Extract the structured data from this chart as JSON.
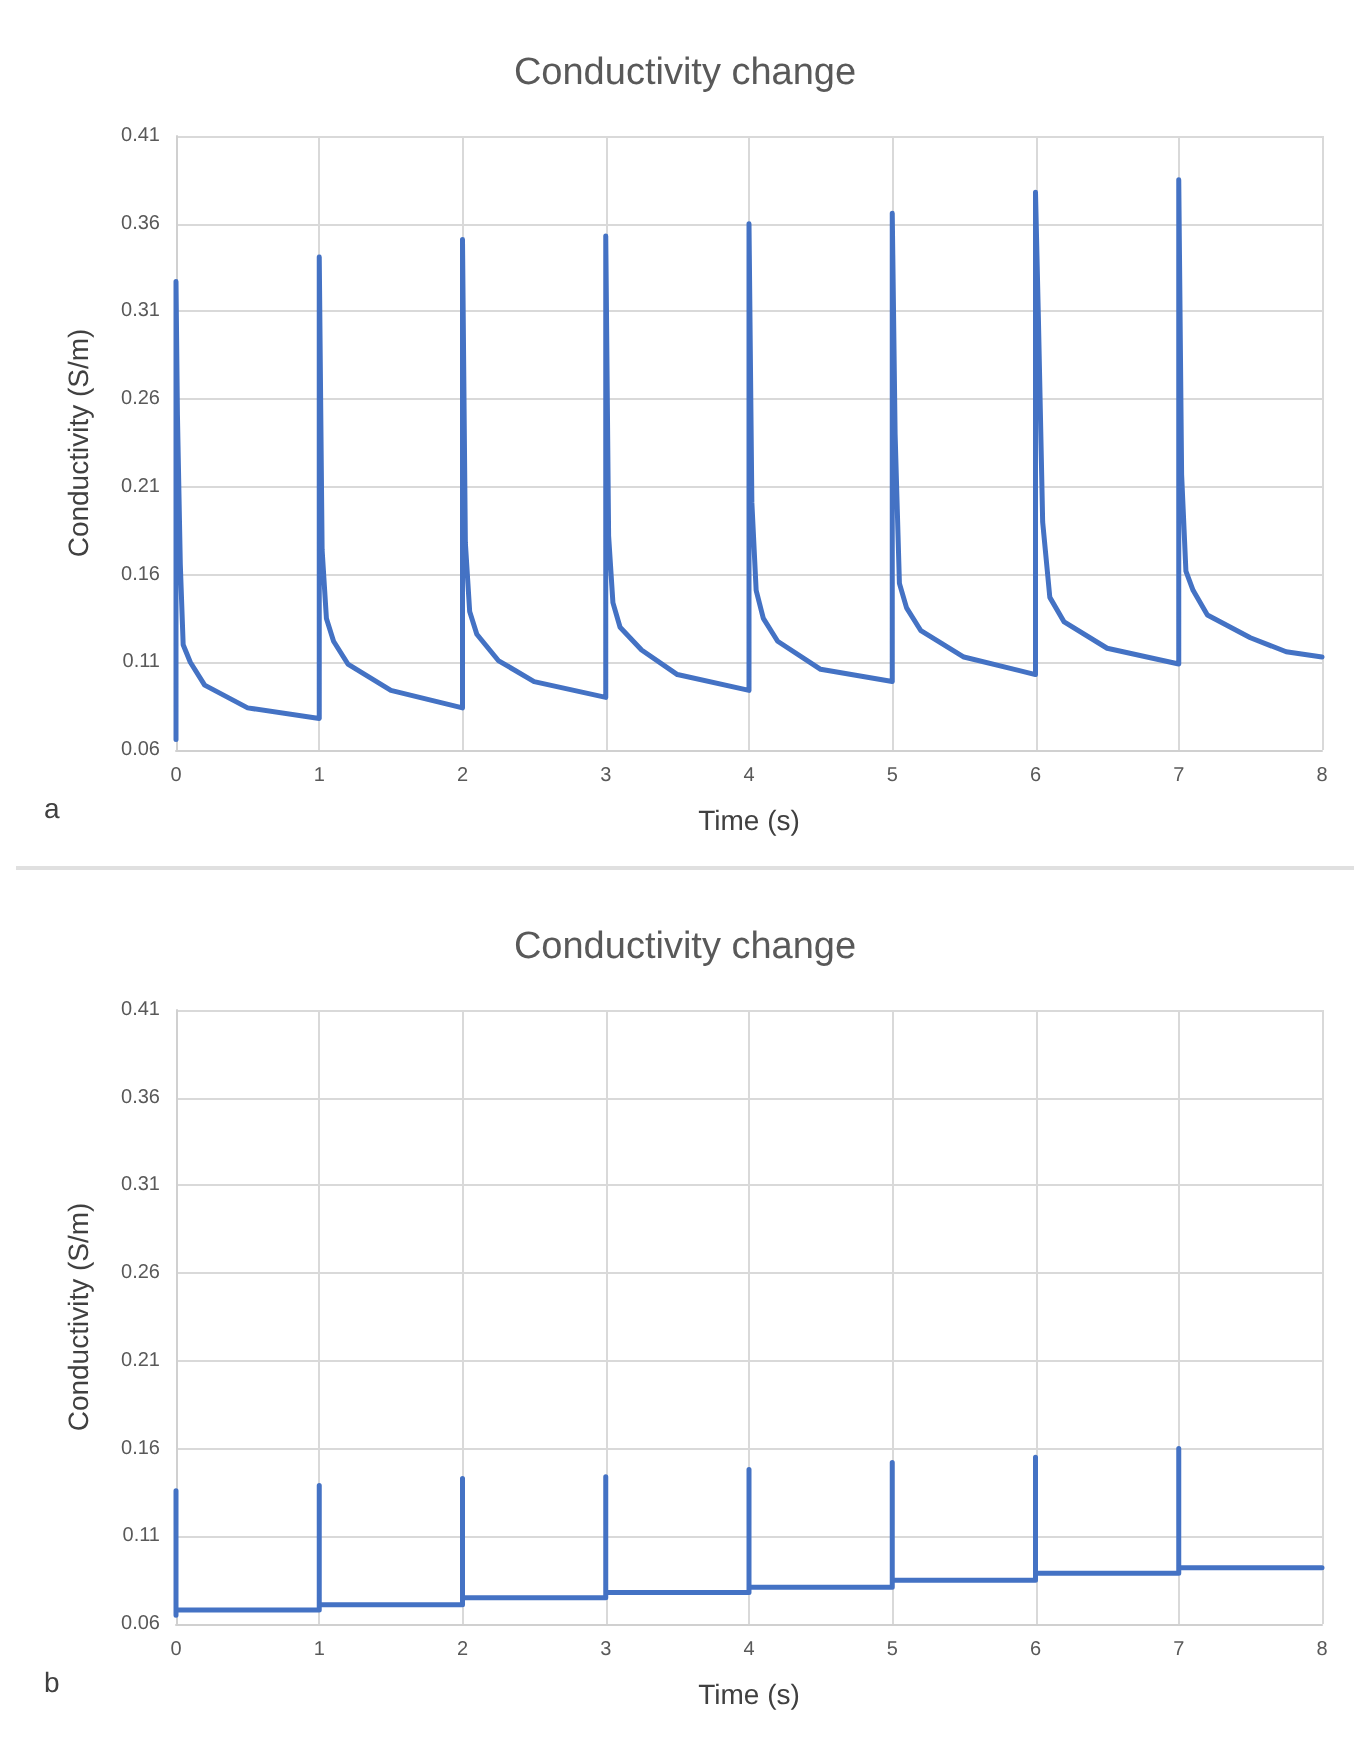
{
  "chart_data": [
    {
      "type": "line",
      "title": "Conductivity change",
      "xlabel": "Time (s)",
      "ylabel": "Conductivity (S/m)",
      "annotations": [
        "a"
      ],
      "color": "#4472c4",
      "x": [
        0,
        0,
        0.01,
        0.03,
        0.05,
        0.1,
        0.2,
        0.5,
        1,
        1,
        1.02,
        1.05,
        1.1,
        1.2,
        1.5,
        2,
        2,
        2.02,
        2.05,
        2.1,
        2.25,
        2.5,
        3,
        3,
        3.02,
        3.05,
        3.1,
        3.25,
        3.5,
        4,
        4,
        4.02,
        4.05,
        4.1,
        4.2,
        4.5,
        5,
        5,
        5.02,
        5.05,
        5.1,
        5.2,
        5.5,
        6,
        6,
        6.02,
        6.05,
        6.1,
        6.2,
        6.5,
        7,
        7,
        7.02,
        7.05,
        7.1,
        7.2,
        7.5,
        7.75,
        8
      ],
      "values": [
        0.066,
        0.327,
        0.251,
        0.166,
        0.12,
        0.11,
        0.097,
        0.084,
        0.078,
        0.341,
        0.174,
        0.135,
        0.122,
        0.109,
        0.094,
        0.084,
        0.351,
        0.178,
        0.139,
        0.126,
        0.111,
        0.099,
        0.09,
        0.353,
        0.182,
        0.144,
        0.13,
        0.117,
        0.103,
        0.094,
        0.36,
        0.201,
        0.151,
        0.135,
        0.122,
        0.106,
        0.099,
        0.366,
        0.24,
        0.155,
        0.141,
        0.128,
        0.113,
        0.103,
        0.378,
        0.307,
        0.19,
        0.147,
        0.133,
        0.118,
        0.109,
        0.385,
        0.217,
        0.162,
        0.151,
        0.137,
        0.124,
        0.116,
        0.113
      ],
      "xlim": [
        0,
        8
      ],
      "xticks": [
        0,
        1,
        2,
        3,
        4,
        5,
        6,
        7,
        8
      ],
      "ylim": [
        0.06,
        0.41
      ],
      "yticks": [
        0.06,
        0.11,
        0.16,
        0.21,
        0.26,
        0.31,
        0.36,
        0.41
      ],
      "grid": true
    },
    {
      "type": "line",
      "title": "Conductivity change",
      "xlabel": "Time (s)",
      "ylabel": "Conductivity (S/m)",
      "annotations": [
        "b"
      ],
      "color": "#4472c4",
      "x": [
        0,
        0,
        0,
        1,
        1,
        1,
        2,
        2,
        2,
        3,
        3,
        3,
        4,
        4,
        4,
        5,
        5,
        5,
        6,
        6,
        6,
        7,
        7,
        7,
        8
      ],
      "values": [
        0.065,
        0.136,
        0.068,
        0.068,
        0.139,
        0.071,
        0.071,
        0.143,
        0.075,
        0.075,
        0.144,
        0.078,
        0.078,
        0.148,
        0.081,
        0.081,
        0.152,
        0.085,
        0.085,
        0.155,
        0.089,
        0.089,
        0.16,
        0.092,
        0.092
      ],
      "xlim": [
        0,
        8
      ],
      "xticks": [
        0,
        1,
        2,
        3,
        4,
        5,
        6,
        7,
        8
      ],
      "ylim": [
        0.06,
        0.41
      ],
      "yticks": [
        0.06,
        0.11,
        0.16,
        0.21,
        0.26,
        0.31,
        0.36,
        0.41
      ],
      "grid": true
    }
  ]
}
